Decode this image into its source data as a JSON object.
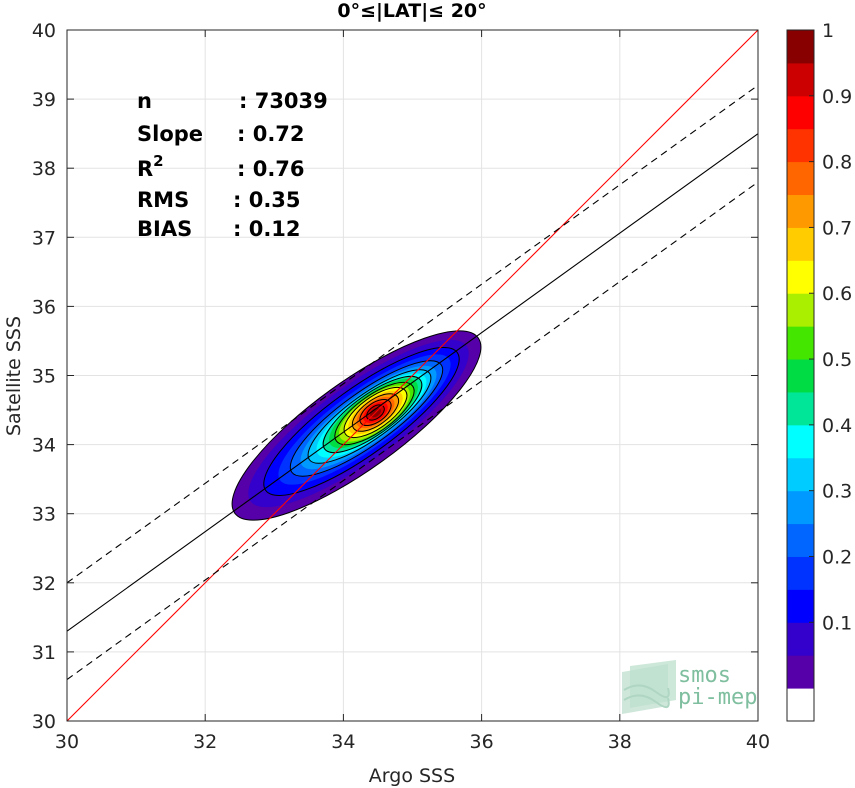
{
  "chart_data": {
    "type": "contour",
    "title": "0°≤|LAT|≤ 20°",
    "xlabel": "Argo SSS",
    "ylabel": "Satellite SSS",
    "xlim": [
      30,
      40
    ],
    "ylim": [
      30,
      40
    ],
    "xticks": [
      30,
      32,
      34,
      36,
      38,
      40
    ],
    "yticks": [
      30,
      31,
      32,
      33,
      34,
      35,
      36,
      37,
      38,
      39,
      40
    ],
    "grid": true,
    "stats": [
      {
        "label": "n",
        "value": ": 73039"
      },
      {
        "label": "Slope",
        "value": ": 0.72"
      },
      {
        "label": "R",
        "sup": "2",
        "value": ": 0.76"
      },
      {
        "label": "RMS",
        "value": ": 0.35"
      },
      {
        "label": "BIAS",
        "value": ": 0.12"
      }
    ],
    "lines": {
      "identity": {
        "x": [
          30,
          40
        ],
        "y": [
          30,
          40
        ],
        "color": "#ff0000"
      },
      "regression": {
        "x": [
          30,
          40
        ],
        "y": [
          31.3,
          38.5
        ],
        "color": "#000000"
      },
      "upper_bound": {
        "x": [
          30,
          40
        ],
        "y": [
          32.0,
          39.2
        ],
        "color": "#000000",
        "dash": true
      },
      "lower_bound": {
        "x": [
          30,
          40
        ],
        "y": [
          30.6,
          37.8
        ],
        "color": "#000000",
        "dash": true
      }
    },
    "density_peak": {
      "x": 34.45,
      "y": 34.45
    },
    "colorbar": {
      "ticks": [
        "0.1",
        "0.2",
        "0.3",
        "0.4",
        "0.5",
        "0.6",
        "0.7",
        "0.8",
        "0.9",
        "1"
      ],
      "levels": [
        0,
        0.05,
        0.1,
        0.15,
        0.2,
        0.25,
        0.3,
        0.35,
        0.4,
        0.45,
        0.5,
        0.55,
        0.6,
        0.65,
        0.7,
        0.75,
        0.8,
        0.85,
        0.9,
        0.95,
        1.0
      ],
      "colors": [
        "#ffffff",
        "#5500a8",
        "#3300cc",
        "#0000ff",
        "#0033ff",
        "#0066ff",
        "#0099ff",
        "#00ccff",
        "#00ffff",
        "#00e699",
        "#00dd44",
        "#44e600",
        "#aaee00",
        "#ffff00",
        "#ffcc00",
        "#ff9900",
        "#ff6600",
        "#ff3300",
        "#ff0000",
        "#cc0000",
        "#880000"
      ]
    }
  },
  "logo": {
    "line1": "smos",
    "line2": "pi-mep"
  }
}
